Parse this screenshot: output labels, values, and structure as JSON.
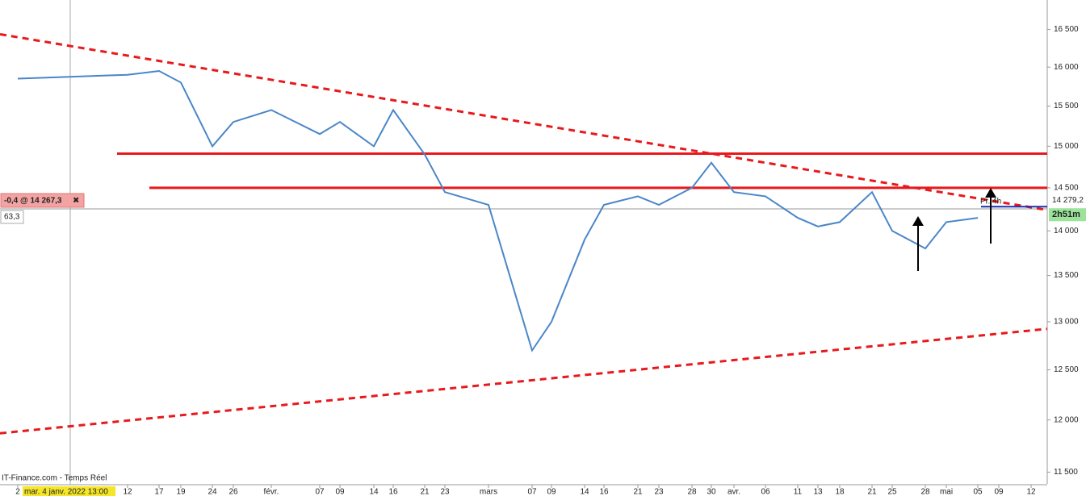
{
  "chart_data": {
    "type": "line",
    "source": "IT-Finance.com - Temps Réel",
    "cursor_date": "mar. 4 janv. 2022 13:00",
    "cursor_info": "-0,4 @ 14 267,3",
    "cursor_close": "✖",
    "indicator": "63,3",
    "last_price": {
      "value": 14279.2,
      "label": "14 279,2"
    },
    "timer": "2h51m",
    "period": "Pr. 4h",
    "categories": [
      "2",
      "12",
      "17",
      "19",
      "24",
      "26",
      "févr.",
      "07",
      "09",
      "14",
      "16",
      "21",
      "23",
      "mars",
      "07",
      "09",
      "14",
      "16",
      "21",
      "23",
      "28",
      "30",
      "avr.",
      "06",
      "11",
      "13",
      "18",
      "21",
      "25",
      "28",
      "mai",
      "05",
      "09",
      "12"
    ],
    "series": [
      {
        "color": "#4a86c8",
        "values": [
          15850,
          15900,
          15950,
          15800,
          15000,
          15300,
          15450,
          15150,
          15300,
          15000,
          15450,
          14900,
          14450,
          14300,
          12700,
          13000,
          13900,
          14300,
          14400,
          14300,
          14500,
          14800,
          14450,
          14400,
          14150,
          14050,
          14100,
          14450,
          14000,
          13800,
          14100,
          14150,
          null,
          null
        ]
      }
    ],
    "levels": [
      {
        "value": 14910,
        "color": "#e8191c"
      },
      {
        "value": 14500,
        "color": "#e8191c"
      }
    ],
    "trendlines": [
      {
        "values": [
          16435,
          14240
        ],
        "color": "#e8191c"
      },
      {
        "values": [
          11870,
          12925
        ],
        "color": "#e8191c"
      }
    ],
    "log_y": true,
    "ylim": [
      11390,
      16900
    ],
    "yticks": [
      {
        "value": 11500,
        "label": "11 500"
      },
      {
        "value": 12000,
        "label": "12 000"
      },
      {
        "value": 12500,
        "label": "12 500"
      },
      {
        "value": 13000,
        "label": "13 000"
      },
      {
        "value": 13500,
        "label": "13 500"
      },
      {
        "value": 14000,
        "label": "14 000"
      },
      {
        "value": 14500,
        "label": "14 500"
      },
      {
        "value": 15000,
        "label": "15 000"
      },
      {
        "value": 15500,
        "label": "15 500"
      },
      {
        "value": 16000,
        "label": "16 000"
      },
      {
        "value": 16500,
        "label": "16 500"
      }
    ]
  }
}
